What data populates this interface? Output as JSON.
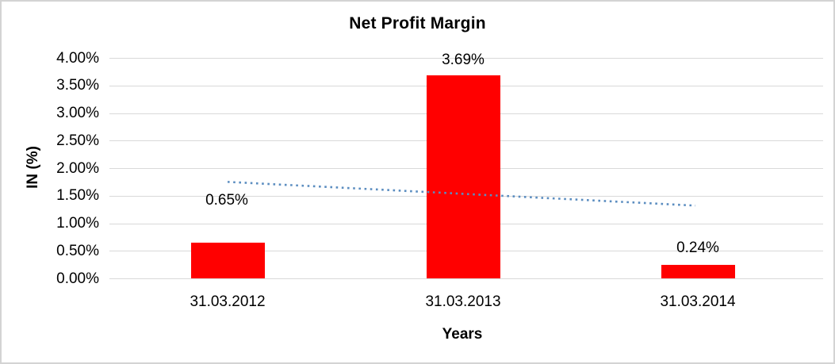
{
  "chart_data": {
    "type": "bar",
    "title": "Net Profit Margin",
    "xlabel": "Years",
    "ylabel": "IN (%)",
    "categories": [
      "31.03.2012",
      "31.03.2013",
      "31.03.2014"
    ],
    "values": [
      0.65,
      3.69,
      0.24
    ],
    "data_labels": [
      "0.65%",
      "3.69%",
      "0.24%"
    ],
    "y_ticks": [
      "4.00%",
      "3.50%",
      "3.00%",
      "2.50%",
      "2.00%",
      "1.50%",
      "1.00%",
      "0.50%",
      "0.00%"
    ],
    "ylim": [
      0,
      4
    ],
    "grid": true,
    "legend": "none",
    "series_name": "Net Profit Margin",
    "trendline": {
      "style": "dotted",
      "shape": "linear",
      "start_value": 1.75,
      "end_value": 1.32
    },
    "colors": {
      "bar": "#ff0000",
      "trendline": "#5b8dc0",
      "gridline": "#d9d9d9",
      "text": "#000000",
      "frame": "#d3d3d3",
      "background": "#ffffff"
    }
  }
}
